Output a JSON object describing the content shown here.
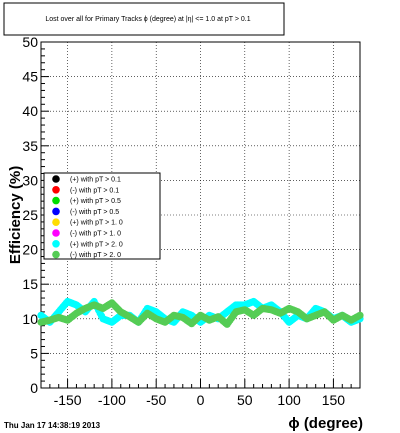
{
  "footer": {
    "timestamp": "Thu Jan 17 14:38:19 2013"
  },
  "chart_data": {
    "type": "scatter",
    "title": "Lost over all for Primary Tracks ϕ (degree) at |η| <= 1.0 at pT > 0.1",
    "xlabel": "ϕ (degree)",
    "ylabel": "Efficiency (%)",
    "xlim": [
      -180,
      180
    ],
    "ylim": [
      0,
      50
    ],
    "xticks": [
      -150,
      -100,
      -50,
      0,
      50,
      100,
      150
    ],
    "yticks": [
      0,
      5,
      10,
      15,
      20,
      25,
      30,
      35,
      40,
      45,
      50
    ],
    "grid": true,
    "legend_position": "middle-left",
    "x": [
      -180,
      -170,
      -160,
      -150,
      -140,
      -130,
      -120,
      -110,
      -100,
      -90,
      -80,
      -70,
      -60,
      -50,
      -40,
      -30,
      -20,
      -10,
      0,
      10,
      20,
      30,
      40,
      50,
      60,
      70,
      80,
      90,
      100,
      110,
      120,
      130,
      140,
      150,
      160,
      170,
      180
    ],
    "series": [
      {
        "name": "(+) with pT > 0.1",
        "color": "#000000",
        "values": []
      },
      {
        "name": "(-) with pT > 0.1",
        "color": "#ff0000",
        "values": []
      },
      {
        "name": "(+) with pT > 0.5",
        "color": "#00dd00",
        "values": []
      },
      {
        "name": "(-) with pT > 0.5",
        "color": "#0000ff",
        "values": []
      },
      {
        "name": "(+) with pT > 1. 0",
        "color": "#ffdd00",
        "values": []
      },
      {
        "name": "(-) with pT > 1. 0",
        "color": "#ff00ff",
        "values": []
      },
      {
        "name": "(+) with pT > 2. 0",
        "color": "#00ffff",
        "values": [
          10.5,
          9.5,
          11.0,
          12.5,
          12.0,
          11.0,
          12.5,
          10.0,
          9.5,
          10.5,
          10.5,
          9.5,
          11.5,
          11.0,
          10.0,
          9.5,
          11.0,
          10.5,
          9.5,
          10.5,
          10.0,
          11.0,
          12.0,
          12.0,
          12.5,
          11.5,
          12.0,
          11.0,
          9.5,
          10.5,
          10.0,
          11.5,
          11.0,
          10.0,
          10.5,
          9.5,
          10.0
        ]
      },
      {
        "name": "(-) with pT > 2. 0",
        "color": "#55cc55",
        "values": [
          9.5,
          9.8,
          10.2,
          9.8,
          10.8,
          11.5,
          12.0,
          11.5,
          12.3,
          11.0,
          10.3,
          9.5,
          10.8,
          10.0,
          9.5,
          10.5,
          10.2,
          9.3,
          10.5,
          9.8,
          10.3,
          9.2,
          11.0,
          11.3,
          10.5,
          11.5,
          11.3,
          10.8,
          11.5,
          11.0,
          10.0,
          10.5,
          11.0,
          9.8,
          10.5,
          9.8,
          10.5
        ]
      }
    ]
  }
}
